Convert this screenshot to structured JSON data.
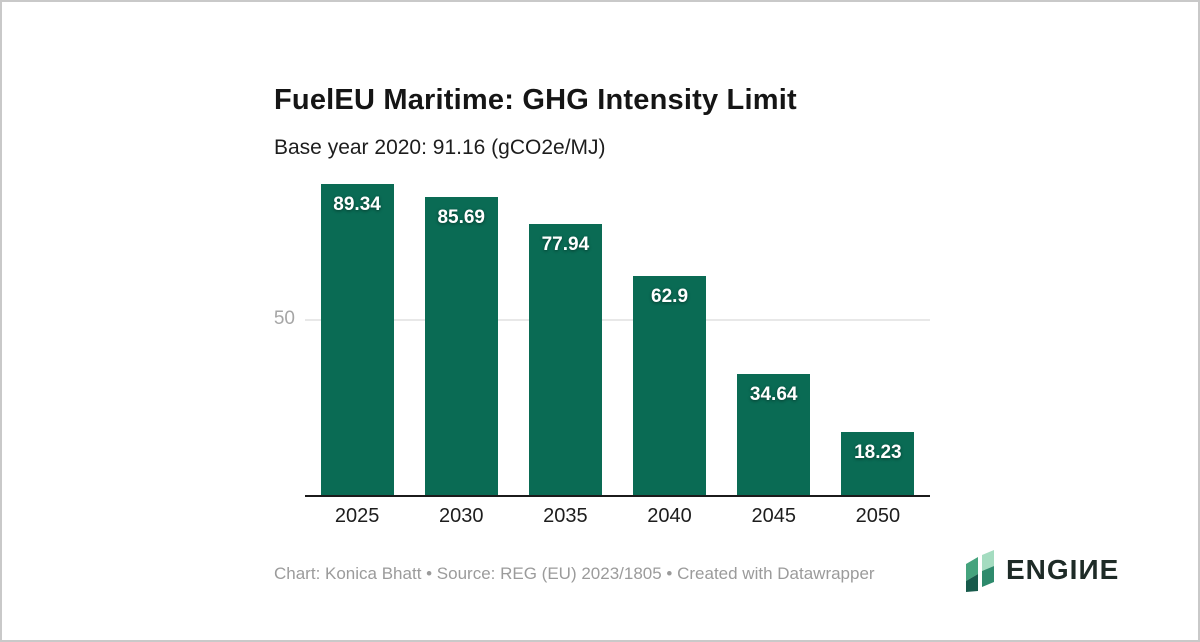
{
  "chart": {
    "title": "FuelEU Maritime: GHG Intensity Limit",
    "subtitle": "Base year 2020: 91.16 (gCO2e/MJ)"
  },
  "chart_data": {
    "type": "bar",
    "title": "FuelEU Maritime: GHG Intensity Limit",
    "subtitle": "Base year 2020: 91.16 (gCO2e/MJ)",
    "categories": [
      "2025",
      "2030",
      "2035",
      "2040",
      "2045",
      "2050"
    ],
    "values": [
      89.34,
      85.69,
      77.94,
      62.9,
      34.64,
      18.23
    ],
    "base_year_value": 91.16,
    "unit": "gCO2e/MJ",
    "xlabel": "",
    "ylabel": "",
    "ylim": [
      0,
      91.16
    ],
    "gridlines": [
      50
    ],
    "grid": "horizontal-single",
    "legend_position": "none",
    "bar_color": "#0a6b54",
    "value_label_color": "#ffffff"
  },
  "footer": {
    "attribution": "Chart: Konica Bhatt • Source: REG (EU) 2023/1805 • Created with Datawrapper"
  },
  "logo": {
    "text": "ENGIИE",
    "icon": "engine-leaf-icon",
    "text_color": "#1e2b27",
    "icon_colors": [
      "#45a37d",
      "#a4dcc0",
      "#175a4b",
      "#2e8a6c"
    ]
  },
  "colors": {
    "background": "#ffffff",
    "frame_border": "#c9c9c9",
    "gridline": "#e8e8e8",
    "axis_line": "#1b1b1b",
    "tick_label": "#a6a6a6",
    "footer_text": "#9b9b9b"
  }
}
